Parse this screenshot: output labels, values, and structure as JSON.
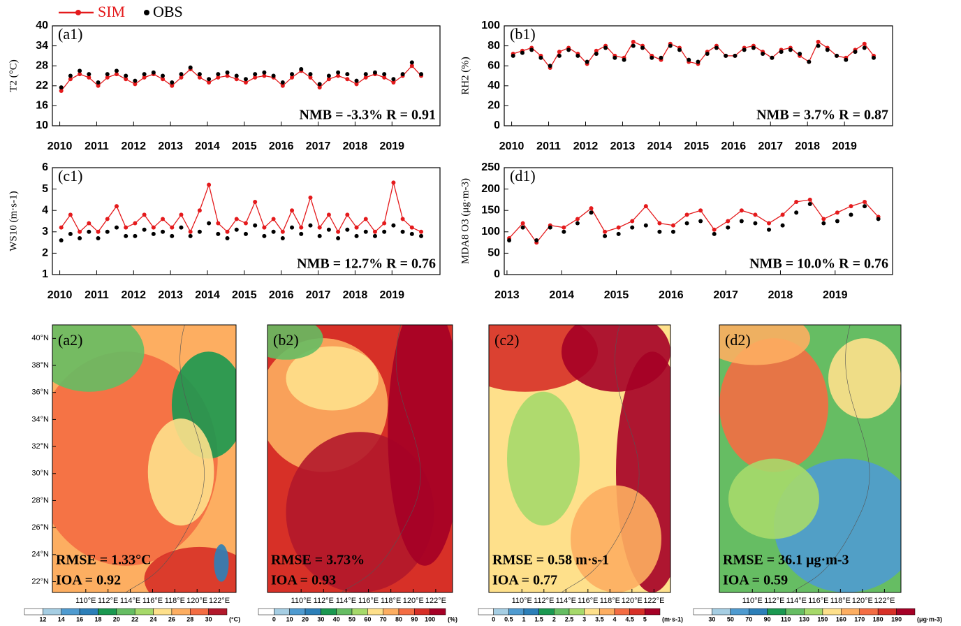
{
  "legend": [
    {
      "name": "SIM",
      "color": "#e41a1c"
    },
    {
      "name": "OBS",
      "color": "#000000"
    }
  ],
  "chart_data": [
    {
      "type": "line",
      "label": "(a1)",
      "ylabel": "T2 (°C)",
      "annotation": "NMB = -3.3% R = 0.91",
      "x": [
        2010.04,
        2010.29,
        2010.54,
        2010.79,
        2011.04,
        2011.29,
        2011.54,
        2011.79,
        2012.04,
        2012.29,
        2012.54,
        2012.79,
        2013.04,
        2013.29,
        2013.54,
        2013.79,
        2014.04,
        2014.29,
        2014.54,
        2014.79,
        2015.04,
        2015.29,
        2015.54,
        2015.79,
        2016.04,
        2016.29,
        2016.54,
        2016.79,
        2017.04,
        2017.29,
        2017.54,
        2017.79,
        2018.04,
        2018.29,
        2018.54,
        2018.79,
        2019.04,
        2019.29,
        2019.54,
        2019.79
      ],
      "series": [
        {
          "color": "#e41a1c",
          "values": [
            20.5,
            24,
            25.5,
            24.5,
            22,
            24.5,
            25.5,
            24,
            22.5,
            24.5,
            25.5,
            24,
            22,
            24.5,
            27,
            24.5,
            23,
            24.5,
            25,
            24,
            23,
            24.5,
            25,
            24.5,
            22,
            24.5,
            26.5,
            24.5,
            21.5,
            24,
            25,
            24,
            22.5,
            24.5,
            25.5,
            24.5,
            23,
            25,
            28,
            25
          ]
        },
        {
          "color": "#000000",
          "values": [
            21.5,
            25,
            26.5,
            25.5,
            23,
            25.5,
            26.5,
            25,
            23.5,
            25.5,
            26,
            25,
            23,
            25.5,
            27.5,
            25.5,
            24,
            25.5,
            26,
            25,
            24,
            25.5,
            26,
            25,
            23,
            25.5,
            27,
            25.5,
            22.5,
            25,
            26,
            25.5,
            23.5,
            25.5,
            26,
            25.5,
            24,
            25.5,
            29,
            25.5
          ]
        }
      ],
      "xlim": [
        2009.8,
        2020.3
      ],
      "xticks": [
        2010,
        2011,
        2012,
        2013,
        2014,
        2015,
        2016,
        2017,
        2018,
        2019
      ],
      "ylim": [
        10,
        40
      ],
      "yticks": [
        10,
        16,
        22,
        28,
        34,
        40
      ]
    },
    {
      "type": "line",
      "label": "(b1)",
      "ylabel": "RH2 (%)",
      "annotation": "NMB = 3.7% R = 0.87",
      "x": [
        2010.04,
        2010.29,
        2010.54,
        2010.79,
        2011.04,
        2011.29,
        2011.54,
        2011.79,
        2012.04,
        2012.29,
        2012.54,
        2012.79,
        2013.04,
        2013.29,
        2013.54,
        2013.79,
        2014.04,
        2014.29,
        2014.54,
        2014.79,
        2015.04,
        2015.29,
        2015.54,
        2015.79,
        2016.04,
        2016.29,
        2016.54,
        2016.79,
        2017.04,
        2017.29,
        2017.54,
        2017.79,
        2018.04,
        2018.29,
        2018.54,
        2018.79,
        2019.04,
        2019.29,
        2019.54,
        2019.79
      ],
      "series": [
        {
          "color": "#e41a1c",
          "values": [
            72,
            75,
            78,
            70,
            58,
            74,
            78,
            72,
            62,
            75,
            80,
            70,
            68,
            84,
            80,
            70,
            66,
            82,
            78,
            64,
            62,
            74,
            80,
            70,
            70,
            78,
            80,
            74,
            68,
            76,
            78,
            70,
            64,
            84,
            78,
            70,
            68,
            76,
            82,
            70
          ]
        },
        {
          "color": "#000000",
          "values": [
            70,
            73,
            76,
            68,
            60,
            70,
            76,
            70,
            64,
            72,
            78,
            68,
            66,
            80,
            78,
            68,
            68,
            80,
            76,
            66,
            64,
            72,
            78,
            70,
            70,
            76,
            78,
            72,
            68,
            74,
            76,
            72,
            64,
            80,
            76,
            70,
            66,
            74,
            78,
            68
          ]
        }
      ],
      "xlim": [
        2009.8,
        2020.3
      ],
      "xticks": [
        2010,
        2011,
        2012,
        2013,
        2014,
        2015,
        2016,
        2017,
        2018,
        2019
      ],
      "ylim": [
        0,
        100
      ],
      "yticks": [
        0,
        20,
        40,
        60,
        80,
        100
      ]
    },
    {
      "type": "line",
      "label": "(c1)",
      "ylabel": "WS10 (m·s-1)",
      "annotation": "NMB = 12.7% R = 0.76",
      "x": [
        2010.04,
        2010.29,
        2010.54,
        2010.79,
        2011.04,
        2011.29,
        2011.54,
        2011.79,
        2012.04,
        2012.29,
        2012.54,
        2012.79,
        2013.04,
        2013.29,
        2013.54,
        2013.79,
        2014.04,
        2014.29,
        2014.54,
        2014.79,
        2015.04,
        2015.29,
        2015.54,
        2015.79,
        2016.04,
        2016.29,
        2016.54,
        2016.79,
        2017.04,
        2017.29,
        2017.54,
        2017.79,
        2018.04,
        2018.29,
        2018.54,
        2018.79,
        2019.04,
        2019.29,
        2019.54,
        2019.79
      ],
      "series": [
        {
          "color": "#e41a1c",
          "values": [
            3.2,
            3.8,
            3.0,
            3.4,
            3.0,
            3.6,
            4.2,
            3.2,
            3.4,
            3.8,
            3.2,
            3.6,
            3.2,
            3.8,
            3.0,
            4.0,
            5.2,
            3.4,
            3.0,
            3.6,
            3.4,
            4.4,
            3.2,
            3.6,
            3.0,
            4.0,
            3.2,
            4.6,
            3.2,
            3.8,
            3.0,
            3.8,
            3.2,
            3.6,
            3.0,
            3.4,
            5.3,
            3.6,
            3.2,
            3.0
          ]
        },
        {
          "color": "#000000",
          "values": [
            2.6,
            2.9,
            2.7,
            3.0,
            2.7,
            3.0,
            3.2,
            2.8,
            2.8,
            3.1,
            2.9,
            3.0,
            2.8,
            3.2,
            2.8,
            3.0,
            3.4,
            2.9,
            2.7,
            3.1,
            2.9,
            3.3,
            2.8,
            3.0,
            2.7,
            3.2,
            2.9,
            3.3,
            2.8,
            3.1,
            2.7,
            3.1,
            2.8,
            3.0,
            2.8,
            3.0,
            3.3,
            3.0,
            2.9,
            2.8
          ]
        }
      ],
      "xlim": [
        2009.8,
        2020.3
      ],
      "xticks": [
        2010,
        2011,
        2012,
        2013,
        2014,
        2015,
        2016,
        2017,
        2018,
        2019
      ],
      "ylim": [
        1,
        6
      ],
      "yticks": [
        1,
        2,
        3,
        4,
        5,
        6
      ]
    },
    {
      "type": "line",
      "label": "(d1)",
      "ylabel": "MDA8 O3 (μg·m-3)",
      "annotation": "NMB = 10.0% R = 0.76",
      "x": [
        2013.04,
        2013.29,
        2013.54,
        2013.79,
        2014.04,
        2014.29,
        2014.54,
        2014.79,
        2015.04,
        2015.29,
        2015.54,
        2015.79,
        2016.04,
        2016.29,
        2016.54,
        2016.79,
        2017.04,
        2017.29,
        2017.54,
        2017.79,
        2018.04,
        2018.29,
        2018.54,
        2018.79,
        2019.04,
        2019.29,
        2019.54,
        2019.79
      ],
      "series": [
        {
          "color": "#e41a1c",
          "values": [
            85,
            120,
            75,
            115,
            110,
            130,
            155,
            100,
            110,
            125,
            160,
            120,
            115,
            140,
            150,
            105,
            125,
            150,
            140,
            120,
            140,
            170,
            175,
            130,
            145,
            160,
            170,
            135
          ]
        },
        {
          "color": "#000000",
          "values": [
            80,
            110,
            80,
            110,
            100,
            120,
            145,
            90,
            95,
            110,
            115,
            100,
            100,
            120,
            125,
            95,
            110,
            125,
            120,
            105,
            115,
            145,
            165,
            120,
            125,
            140,
            160,
            130
          ]
        }
      ],
      "xlim": [
        2012.95,
        2020.05
      ],
      "xticks": [
        2013,
        2014,
        2015,
        2016,
        2017,
        2018,
        2019
      ],
      "ylim": [
        0,
        250
      ],
      "yticks": [
        0,
        50,
        100,
        150,
        200,
        250
      ]
    },
    {
      "type": "map",
      "label": "(a2)",
      "annotations": [
        "RMSE = 1.33°C",
        "IOA = 0.92"
      ],
      "xlim": [
        107,
        123.5
      ],
      "ylim": [
        21.2,
        41
      ],
      "xticks": [
        {
          "value": 110,
          "label": "110°E"
        },
        {
          "value": 112,
          "label": "112°E"
        },
        {
          "value": 114,
          "label": "114°E"
        },
        {
          "value": 116,
          "label": "116°E"
        },
        {
          "value": 118,
          "label": "118°E"
        },
        {
          "value": 120,
          "label": "120°E"
        },
        {
          "value": 122,
          "label": "122°E"
        }
      ],
      "yticks": [
        {
          "value": 40,
          "label": "40°N"
        },
        {
          "value": 38,
          "label": "38°N"
        },
        {
          "value": 36,
          "label": "36°N"
        },
        {
          "value": 34,
          "label": "34°N"
        },
        {
          "value": 32,
          "label": "32°N"
        },
        {
          "value": 30,
          "label": "30°N"
        },
        {
          "value": 28,
          "label": "28°N"
        },
        {
          "value": 26,
          "label": "26°N"
        },
        {
          "value": 24,
          "label": "24°N"
        },
        {
          "value": 22,
          "label": "22°N"
        }
      ],
      "colorbar": {
        "ticks": [
          12,
          14,
          16,
          18,
          20,
          22,
          24,
          26,
          28,
          30
        ],
        "unit": "(°C)",
        "colors": [
          "#ffffff",
          "#a6cee3",
          "#4f9bd0",
          "#2c7fb8",
          "#1a9850",
          "#66bd63",
          "#a6d96a",
          "#fee08b",
          "#fdae61",
          "#f46d43",
          "#b2182b"
        ]
      }
    },
    {
      "type": "map",
      "label": "(b2)",
      "annotations": [
        "RMSE = 3.73%",
        "IOA = 0.93"
      ],
      "xlim": [
        107,
        123.5
      ],
      "ylim": [
        21.2,
        41
      ],
      "xticks": [
        {
          "value": 110,
          "label": "110°E"
        },
        {
          "value": 112,
          "label": "112°E"
        },
        {
          "value": 114,
          "label": "114°E"
        },
        {
          "value": 116,
          "label": "116°E"
        },
        {
          "value": 118,
          "label": "118°E"
        },
        {
          "value": 120,
          "label": "120°E"
        },
        {
          "value": 122,
          "label": "122°E"
        }
      ],
      "colorbar": {
        "ticks": [
          0,
          10,
          20,
          30,
          40,
          50,
          60,
          70,
          80,
          90,
          100
        ],
        "unit": "(%)",
        "colors": [
          "#ffffff",
          "#a6cee3",
          "#4f9bd0",
          "#2c7fb8",
          "#1a9850",
          "#66bd63",
          "#a6d96a",
          "#fee08b",
          "#fdae61",
          "#f46d43",
          "#d73027",
          "#a50026"
        ]
      }
    },
    {
      "type": "map",
      "label": "(c2)",
      "annotations": [
        "RMSE = 0.58 m·s-1",
        "IOA = 0.77"
      ],
      "xlim": [
        107,
        123.5
      ],
      "ylim": [
        21.2,
        41
      ],
      "xticks": [
        {
          "value": 110,
          "label": "110°E"
        },
        {
          "value": 112,
          "label": "112°E"
        },
        {
          "value": 114,
          "label": "114°E"
        },
        {
          "value": 116,
          "label": "116°E"
        },
        {
          "value": 118,
          "label": "118°E"
        },
        {
          "value": 120,
          "label": "120°E"
        },
        {
          "value": 122,
          "label": "122°E"
        }
      ],
      "colorbar": {
        "ticks": [
          0,
          0.5,
          1,
          1.5,
          2,
          2.5,
          3,
          3.5,
          4,
          4.5,
          5
        ],
        "unit": "(m·s-1)",
        "colors": [
          "#ffffff",
          "#a6cee3",
          "#4f9bd0",
          "#2c7fb8",
          "#1a9850",
          "#66bd63",
          "#a6d96a",
          "#fee08b",
          "#fdae61",
          "#f46d43",
          "#d73027",
          "#a50026"
        ]
      }
    },
    {
      "type": "map",
      "label": "(d2)",
      "annotations": [
        "RMSE = 36.1 μg·m-3",
        "IOA = 0.59"
      ],
      "xlim": [
        107,
        123.5
      ],
      "ylim": [
        21.2,
        41
      ],
      "xticks": [
        {
          "value": 110,
          "label": "110°E"
        },
        {
          "value": 112,
          "label": "112°E"
        },
        {
          "value": 114,
          "label": "114°E"
        },
        {
          "value": 116,
          "label": "116°E"
        },
        {
          "value": 118,
          "label": "118°E"
        },
        {
          "value": 120,
          "label": "120°E"
        },
        {
          "value": 122,
          "label": "122°E"
        }
      ],
      "colorbar": {
        "ticks": [
          30,
          50,
          70,
          90,
          110,
          130,
          150,
          160,
          170,
          180,
          190
        ],
        "unit": "(μg·m-3)",
        "colors": [
          "#ffffff",
          "#a6cee3",
          "#4f9bd0",
          "#2c7fb8",
          "#1a9850",
          "#66bd63",
          "#a6d96a",
          "#fee08b",
          "#fdae61",
          "#f46d43",
          "#d73027",
          "#a50026"
        ]
      }
    }
  ]
}
